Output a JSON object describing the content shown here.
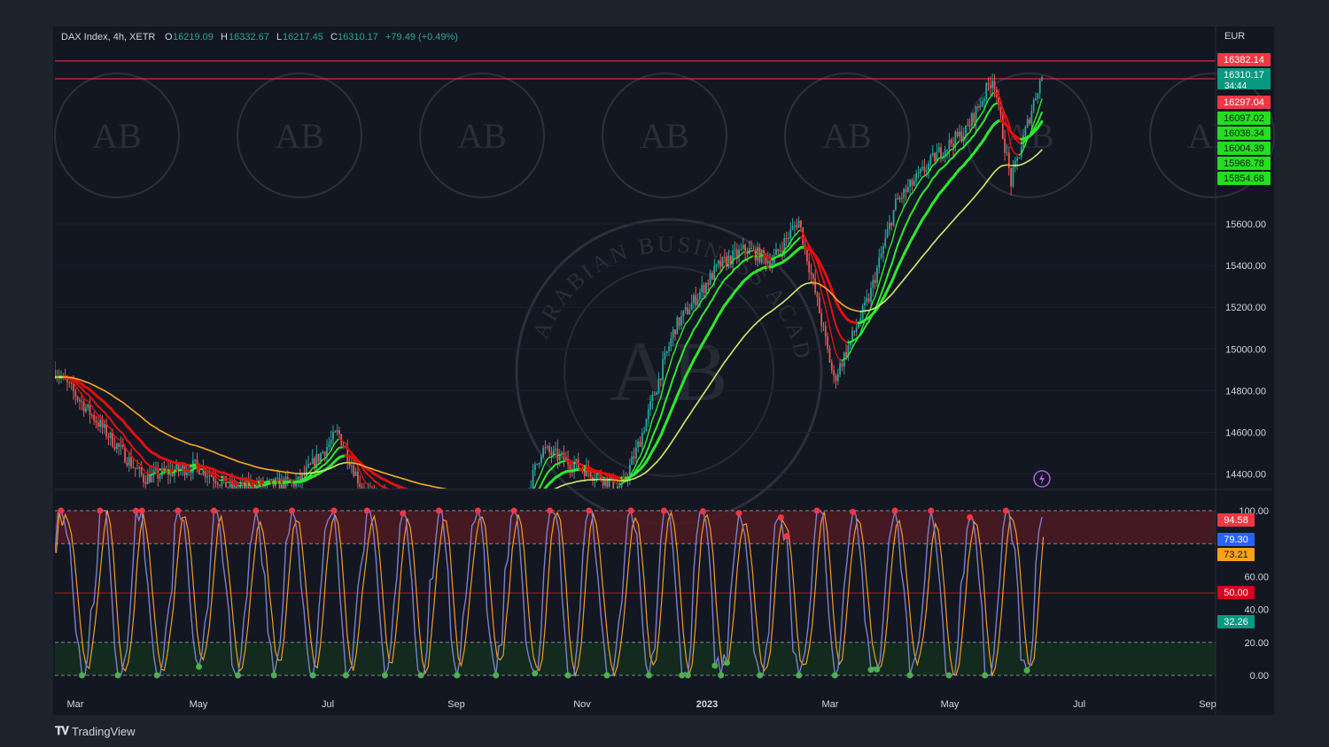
{
  "header": {
    "symbol": "DAX Index, 4h, XETR",
    "open_label": "O",
    "open": "16219.09",
    "high_label": "H",
    "high": "16332.67",
    "low_label": "L",
    "low": "16217.45",
    "close_label": "C",
    "close": "16310.17",
    "change": "+79.49 (+0.49%)"
  },
  "currency": "EUR",
  "brand": "TradingView",
  "watermark": {
    "text": "ARABIAN BUSINESS ACADEMY",
    "initials": "AB"
  },
  "colors": {
    "background": "#131722",
    "frame": "#1e222d",
    "bull": "#26a69a",
    "bear": "#ef5350",
    "ma_red": "#e01010",
    "ma_orange": "#f5a623",
    "ma_green": "#2ee82e",
    "ma_lightgreen": "#cde86a",
    "stoch_k": "#7b80c8",
    "stoch_d": "#f59a23",
    "zone_over": "#4a1a22",
    "zone_under": "#14301e"
  },
  "chart_data": [
    {
      "type": "candlestick",
      "title": "",
      "y_ticks": [
        "15600.00",
        "15400.00",
        "15200.00",
        "15000.00",
        "14800.00",
        "14600.00",
        "14400.00"
      ],
      "y_range": [
        14330,
        16420
      ],
      "price_labels": [
        {
          "text": "16382.14",
          "value": 16382.14,
          "color": "#f23645"
        },
        {
          "text": "16310.17",
          "sub": "34:44",
          "value": 16310.17,
          "color": "#089981"
        },
        {
          "text": "16297.04",
          "value": 16297.04,
          "color": "#f23645"
        },
        {
          "text": "16097.02",
          "value": 16097.02,
          "color": "#22e01e"
        },
        {
          "text": "16038.34",
          "value": 16038.34,
          "color": "#22e01e"
        },
        {
          "text": "16004.39",
          "value": 16004.39,
          "color": "#22e01e"
        },
        {
          "text": "15968.78",
          "value": 15968.78,
          "color": "#22e01e"
        },
        {
          "text": "15854.68",
          "value": 15854.68,
          "color": "#22e01e"
        }
      ],
      "price_series_approx": [
        {
          "t": 0.0,
          "v": 14900
        },
        {
          "t": 2.0,
          "v": 14380
        },
        {
          "t": 3.2,
          "v": 14440
        },
        {
          "t": 4.0,
          "v": 14330
        },
        {
          "t": 5.5,
          "v": 14360
        },
        {
          "t": 6.4,
          "v": 14600
        },
        {
          "t": 7.0,
          "v": 14300
        },
        {
          "t": 10.5,
          "v": 14200
        },
        {
          "t": 11.0,
          "v": 14520
        },
        {
          "t": 12.2,
          "v": 14400
        },
        {
          "t": 12.8,
          "v": 14330
        },
        {
          "t": 13.2,
          "v": 14550
        },
        {
          "t": 14.0,
          "v": 15100
        },
        {
          "t": 15.0,
          "v": 15400
        },
        {
          "t": 15.6,
          "v": 15480
        },
        {
          "t": 16.2,
          "v": 15420
        },
        {
          "t": 16.8,
          "v": 15620
        },
        {
          "t": 17.2,
          "v": 15250
        },
        {
          "t": 17.6,
          "v": 14850
        },
        {
          "t": 18.4,
          "v": 15250
        },
        {
          "t": 19.0,
          "v": 15700
        },
        {
          "t": 20.0,
          "v": 15950
        },
        {
          "t": 20.6,
          "v": 16050
        },
        {
          "t": 21.2,
          "v": 16310
        },
        {
          "t": 21.6,
          "v": 15800
        },
        {
          "t": 22.0,
          "v": 16100
        },
        {
          "t": 22.2,
          "v": 16250
        },
        {
          "t": 22.3,
          "v": 16310
        }
      ],
      "moving_averages": [
        {
          "color": "red",
          "last": 15968.78
        },
        {
          "color": "orange",
          "last": 15854.68
        },
        {
          "color": "green",
          "last": 16097.02
        },
        {
          "color": "lightgreen",
          "last": 15854.68
        }
      ]
    },
    {
      "type": "line",
      "title": "",
      "y_ticks": [
        "100.00",
        "60.00",
        "40.00",
        "20.00",
        "0.00"
      ],
      "y_range": [
        0,
        100
      ],
      "levels": [
        {
          "value": 80
        },
        {
          "value": 50
        },
        {
          "value": 20
        }
      ],
      "value_labels": [
        {
          "text": "94.58",
          "value": 94.58,
          "color": "#f23645"
        },
        {
          "text": "79.30",
          "value": 79.3,
          "color": "#2962ff"
        },
        {
          "text": "73.21",
          "value": 73.21,
          "color": "#f7a21b"
        },
        {
          "text": "50.00",
          "value": 50.0,
          "color": "#d8001c"
        },
        {
          "text": "32.26",
          "value": 32.26,
          "color": "#089981"
        }
      ],
      "series": [
        {
          "values_last": 79.3
        },
        {
          "values_last": 73.21
        }
      ]
    }
  ],
  "x_axis": {
    "labels": [
      {
        "text": "Mar",
        "t": 0.25
      },
      {
        "text": "May",
        "t": 2.2
      },
      {
        "text": "Jul",
        "t": 4.2
      },
      {
        "text": "Sep",
        "t": 6.2
      },
      {
        "text": "Nov",
        "t": 8.2
      },
      {
        "text": "2023",
        "t": 10.2
      },
      {
        "text": "Mar",
        "t": 12.2
      },
      {
        "text": "May",
        "t": 14.2
      },
      {
        "text": "Jul",
        "t": 16.2
      },
      {
        "text": "Sep",
        "t": 18.2
      }
    ]
  }
}
